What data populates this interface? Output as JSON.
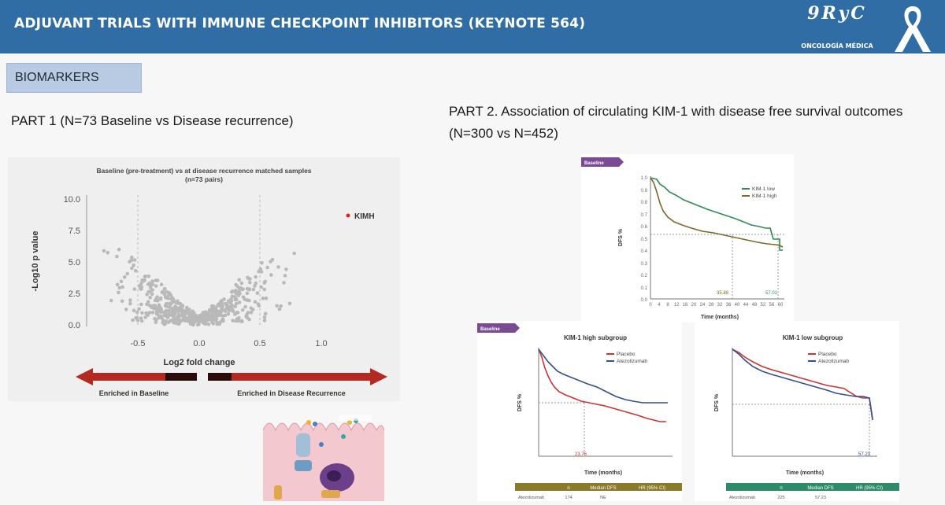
{
  "header": {
    "title": "ADJUVANT TRIALS WITH IMMUNE CHECKPOINT INHIBITORS (KEYNOTE 564)",
    "logo_mark": "9RyC",
    "logo_sub": "ONCOLOGÍA MÉDICA"
  },
  "section_tag": "BIOMARKERS",
  "part1": {
    "title": "PART 1 (N=73 Baseline vs Disease recurrence)",
    "volcano": {
      "title_line1": "Baseline (pre-treatment) vs at disease recurrence matched samples",
      "title_line2": "(n=73 pairs)",
      "ylabel": "-Log10 p value",
      "xlabel": "Log2 fold change",
      "y_ticks": [
        "0.0",
        "2.5",
        "5.0",
        "7.5",
        "10.0"
      ],
      "x_ticks": [
        "-0.5",
        "0.0",
        "0.5",
        "1.0"
      ],
      "legend": "KIMH",
      "arrow_left": "Enriched in Baseline",
      "arrow_right": "Enriched in Disease Recurrence"
    }
  },
  "part2": {
    "title": "PART 2. Association of circulating KIM-1 with disease free survival outcomes (N=300 vs N=452)",
    "main": {
      "tag": "Baseline",
      "ylabel": "DFS %",
      "xlabel": "Time (months)",
      "legend": [
        "KIM-1 low",
        "KIM-1 high"
      ],
      "median_labels": [
        "35.88",
        "57.01"
      ],
      "x_ticks": [
        "0",
        "4",
        "8",
        "12",
        "16",
        "20",
        "24",
        "28",
        "32",
        "36",
        "40",
        "44",
        "48",
        "52",
        "56",
        "60"
      ],
      "y_ticks": [
        "0.0",
        "0.1",
        "0.2",
        "0.3",
        "0.4",
        "0.5",
        "0.6",
        "0.7",
        "0.8",
        "0.9",
        "1.0"
      ],
      "colors": {
        "low": "#2e8b57",
        "high": "#7a6a2a"
      }
    },
    "left": {
      "tag": "Baseline",
      "title": "KIM-1 high subgroup",
      "ylabel": "DFS %",
      "xlabel": "Time (months)",
      "legend": [
        "Placebo",
        "Atezolizumab"
      ],
      "median_label": "23.76",
      "table_header": [
        "n",
        "Median DFS",
        "HR (95% CI)"
      ],
      "table_row": [
        "Atezolizumab",
        "174",
        "NE"
      ],
      "colors": {
        "placebo": "#cc3333",
        "atezo": "#33508c",
        "table": "#8a7a2a"
      }
    },
    "right": {
      "title": "KIM-1 low subgroup",
      "ylabel": "DFS %",
      "xlabel": "Time (months)",
      "legend": [
        "Placebo",
        "Atezolizumab"
      ],
      "median_label": "57.23",
      "table_header": [
        "n",
        "Median DFS",
        "HR (95% CI)"
      ],
      "table_row": [
        "Atezolizumab",
        "225",
        "57.23"
      ],
      "colors": {
        "placebo": "#cc3333",
        "atezo": "#33508c",
        "table": "#2e8b6a"
      }
    }
  }
}
